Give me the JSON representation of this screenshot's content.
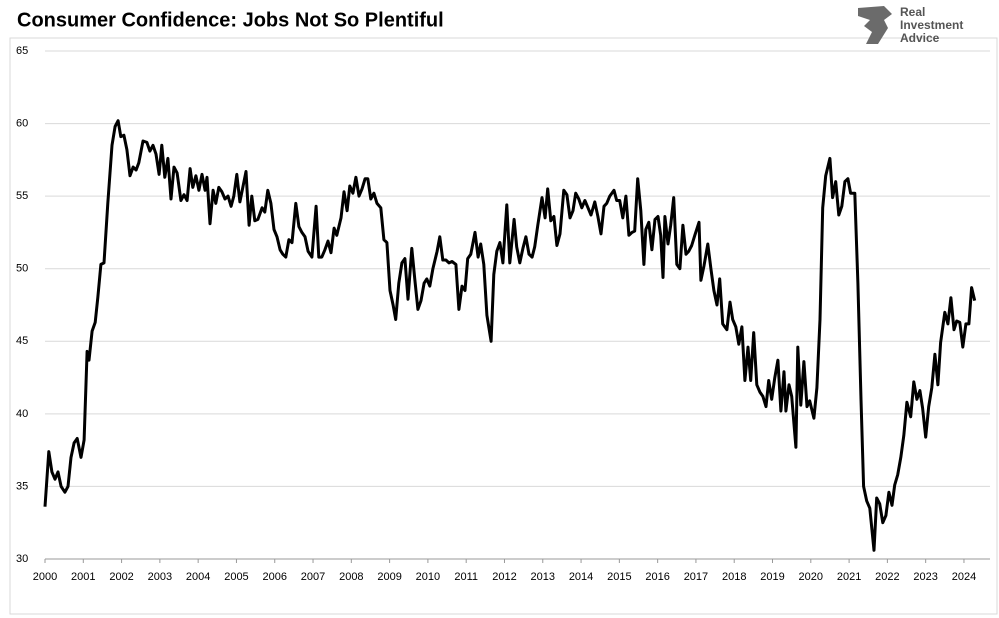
{
  "chart_data": {
    "type": "line",
    "title": "Consumer Confidence: Jobs Not So Plentiful",
    "logo": [
      "Real",
      "Investment",
      "Advice"
    ],
    "xlim": [
      2000,
      2024.68
    ],
    "ylim": [
      30,
      65
    ],
    "xticks": [
      2000,
      2001,
      2002,
      2003,
      2004,
      2005,
      2006,
      2007,
      2008,
      2009,
      2010,
      2011,
      2012,
      2013,
      2014,
      2015,
      2016,
      2017,
      2018,
      2019,
      2020,
      2021,
      2022,
      2023,
      2024
    ],
    "yticks": [
      30,
      35,
      40,
      45,
      50,
      55,
      60,
      65
    ],
    "grid": true,
    "series": [
      {
        "color": "#000000",
        "x": [
          2000,
          2000.1,
          2000.18,
          2000.26,
          2000.34,
          2000.42,
          2000.52,
          2000.6,
          2000.68,
          2000.76,
          2000.84,
          2000.94,
          2001.02,
          2001.1,
          2001.15,
          2001.23,
          2001.31,
          2001.38,
          2001.46,
          2001.54,
          2001.64,
          2001.75,
          2001.83,
          2001.91,
          2001.98,
          2002.06,
          2002.14,
          2002.22,
          2002.3,
          2002.38,
          2002.45,
          2002.56,
          2002.66,
          2002.74,
          2002.82,
          2002.9,
          2002.98,
          2003.05,
          2003.13,
          2003.21,
          2003.29,
          2003.37,
          2003.45,
          2003.55,
          2003.63,
          2003.71,
          2003.79,
          2003.86,
          2003.94,
          2004.02,
          2004.1,
          2004.18,
          2004.23,
          2004.31,
          2004.39,
          2004.46,
          2004.54,
          2004.62,
          2004.7,
          2004.78,
          2004.86,
          2004.93,
          2005.01,
          2005.09,
          2005.25,
          2005.33,
          2005.4,
          2005.48,
          2005.56,
          2005.67,
          2005.74,
          2005.82,
          2005.9,
          2005.98,
          2006.06,
          2006.14,
          2006.21,
          2006.29,
          2006.37,
          2006.45,
          2006.55,
          2006.63,
          2006.71,
          2006.79,
          2006.87,
          2006.97,
          2007.08,
          2007.15,
          2007.23,
          2007.31,
          2007.39,
          2007.47,
          2007.55,
          2007.62,
          2007.73,
          2007.81,
          2007.89,
          2007.96,
          2008.04,
          2008.12,
          2008.2,
          2008.28,
          2008.36,
          2008.43,
          2008.51,
          2008.59,
          2008.67,
          2008.77,
          2008.85,
          2008.93,
          2009.01,
          2009.09,
          2009.16,
          2009.24,
          2009.32,
          2009.4,
          2009.48,
          2009.58,
          2009.66,
          2009.74,
          2009.82,
          2009.9,
          2009.97,
          2010.05,
          2010.13,
          2010.24,
          2010.31,
          2010.39,
          2010.47,
          2010.55,
          2010.63,
          2010.73,
          2010.81,
          2010.89,
          2010.97,
          2011.04,
          2011.12,
          2011.23,
          2011.31,
          2011.38,
          2011.46,
          2011.54,
          2011.65,
          2011.72,
          2011.8,
          2011.88,
          2011.96,
          2012.06,
          2012.14,
          2012.25,
          2012.32,
          2012.4,
          2012.48,
          2012.56,
          2012.64,
          2012.72,
          2012.79,
          2012.87,
          2012.98,
          2013.06,
          2013.13,
          2013.21,
          2013.29,
          2013.37,
          2013.45,
          2013.55,
          2013.63,
          2013.71,
          2013.79,
          2013.86,
          2013.94,
          2014.02,
          2014.1,
          2014.18,
          2014.26,
          2014.36,
          2014.44,
          2014.52,
          2014.6,
          2014.67,
          2014.75,
          2014.86,
          2014.93,
          2015.01,
          2015.09,
          2015.17,
          2015.25,
          2015.33,
          2015.4,
          2015.48,
          2015.56,
          2015.64,
          2015.69,
          2015.77,
          2015.85,
          2015.93,
          2016.01,
          2016.08,
          2016.14,
          2016.19,
          2016.27,
          2016.34,
          2016.42,
          2016.5,
          2016.58,
          2016.66,
          2016.74,
          2016.81,
          2016.89,
          2016.97,
          2017.08,
          2017.13,
          2017.21,
          2017.31,
          2017.39,
          2017.47,
          2017.55,
          2017.62,
          2017.7,
          2017.81,
          2017.89,
          2017.96,
          2018.04,
          2018.12,
          2018.2,
          2018.28,
          2018.36,
          2018.43,
          2018.51,
          2018.59,
          2018.67,
          2018.75,
          2018.83,
          2018.9,
          2018.98,
          2019.06,
          2019.14,
          2019.22,
          2019.3,
          2019.35,
          2019.43,
          2019.5,
          2019.61,
          2019.66,
          2019.74,
          2019.82,
          2019.9,
          2019.97,
          2020.08,
          2020.16,
          2020.24,
          2020.31,
          2020.39,
          2020.5,
          2020.57,
          2020.65,
          2020.73,
          2020.81,
          2020.89,
          2020.97,
          2021.04,
          2021.15,
          2021.23,
          2021.31,
          2021.38,
          2021.46,
          2021.54,
          2021.65,
          2021.72,
          2021.8,
          2021.88,
          2021.96,
          2022.04,
          2022.12,
          2022.19,
          2022.27,
          2022.35,
          2022.43,
          2022.51,
          2022.61,
          2022.69,
          2022.77,
          2022.85,
          2022.92,
          2023.0,
          2023.08,
          2023.16,
          2023.24,
          2023.32,
          2023.39,
          2023.5,
          2023.58,
          2023.66,
          2023.74,
          2023.81,
          2023.89,
          2023.97,
          2024.05,
          2024.13,
          2024.2,
          2024.28
        ],
        "values": [
          33.6,
          37.4,
          36,
          35.5,
          36,
          35,
          34.6,
          35,
          37,
          38,
          38.3,
          37,
          38.2,
          44.3,
          43.7,
          45.7,
          46.3,
          48,
          50.3,
          50.4,
          54.5,
          58.5,
          59.8,
          60.2,
          59.1,
          59.2,
          58.2,
          56.4,
          57,
          56.8,
          57.3,
          58.8,
          58.7,
          58.1,
          58.5,
          57.9,
          56.5,
          58.5,
          56.3,
          57.6,
          54.8,
          57,
          56.6,
          54.7,
          55.1,
          54.7,
          56.9,
          55.6,
          56.4,
          55.4,
          56.5,
          55.4,
          56.3,
          53.1,
          55.4,
          54.5,
          55.6,
          55.3,
          54.8,
          55,
          54.3,
          55,
          56.5,
          54.6,
          56.7,
          53,
          55,
          53.3,
          53.4,
          54.2,
          53.9,
          55.4,
          54.5,
          52.7,
          52.2,
          51.3,
          51,
          50.8,
          52,
          51.8,
          54.5,
          52.9,
          52.5,
          52.2,
          51.2,
          50.8,
          54.3,
          50.8,
          50.8,
          51.3,
          51.9,
          51.1,
          52.8,
          52.3,
          53.5,
          55.3,
          54,
          55.7,
          55.2,
          56.3,
          55,
          55.5,
          56.2,
          56.2,
          54.8,
          55.2,
          54.5,
          54.2,
          52,
          51.8,
          48.5,
          47.5,
          46.5,
          49,
          50.4,
          50.7,
          47.9,
          51.4,
          49.2,
          47.2,
          47.8,
          49,
          49.3,
          48.8,
          50,
          51.2,
          52.2,
          50.6,
          50.6,
          50.4,
          50.5,
          50.3,
          47.2,
          48.8,
          48.5,
          50.7,
          51,
          52.5,
          50.8,
          51.7,
          50.3,
          46.8,
          45,
          49.6,
          51.2,
          51.8,
          50.4,
          54.4,
          50.4,
          53.4,
          51.5,
          50.4,
          51.4,
          52.2,
          51,
          50.8,
          51.5,
          53,
          54.9,
          53.5,
          55.5,
          53.3,
          53.6,
          51.6,
          52.4,
          55.4,
          55.1,
          53.5,
          54,
          55.2,
          54.8,
          54.2,
          54.7,
          54.2,
          53.7,
          54.6,
          53.6,
          52.4,
          54.3,
          54.5,
          55,
          55.4,
          54.7,
          54.7,
          53.5,
          55,
          52.3,
          52.5,
          52.6,
          56.2,
          54,
          50.3,
          52.7,
          53.2,
          51.3,
          53.4,
          53.6,
          52.3,
          49.4,
          53.6,
          51.7,
          53,
          54.9,
          50.3,
          50,
          53,
          51,
          51.2,
          51.6,
          52.3,
          53.2,
          49.2,
          50.2,
          51.7,
          50,
          48.5,
          47.5,
          49.3,
          46.2,
          45.8,
          47.7,
          46.5,
          46,
          44.8,
          46,
          42.3,
          44.6,
          42.3,
          45.6,
          42,
          41.5,
          41.2,
          40.5,
          42.3,
          41,
          42.5,
          43.7,
          40.2,
          42.9,
          40.2,
          42,
          41.2,
          37.7,
          44.6,
          40.6,
          43.6,
          40.5,
          40.9,
          39.7,
          41.8,
          46.5,
          54.2,
          56.4,
          57.6,
          54.9,
          56,
          53.7,
          54.3,
          56,
          56.2,
          55.2,
          55.2,
          49,
          41,
          35,
          34,
          33.5,
          30.6,
          34.2,
          33.8,
          32.5,
          33,
          34.6,
          33.7,
          35.1,
          35.8,
          37,
          38.5,
          40.8,
          39.8,
          42.2,
          41,
          41.6,
          40.4,
          38.4,
          40.5,
          41.8,
          44.1,
          42,
          44.9,
          47,
          46.2,
          48,
          45.8,
          46.4,
          46.3,
          44.6,
          46.2,
          46.2,
          48.7,
          47.8
        ]
      }
    ]
  }
}
